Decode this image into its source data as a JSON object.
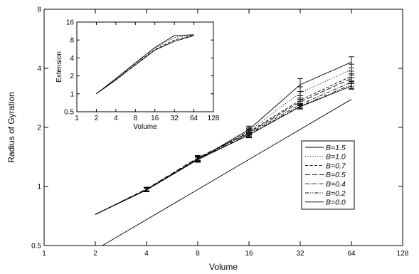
{
  "chart_data": [
    {
      "id": "main",
      "type": "line",
      "scale": "log-log",
      "xlabel": "Volume",
      "ylabel": "Radius of Gyration",
      "xlim": [
        1,
        128
      ],
      "ylim": [
        0.5,
        8
      ],
      "xticks": [
        1,
        2,
        4,
        8,
        16,
        32,
        64,
        128
      ],
      "xticklabels": [
        "1",
        "2",
        "4",
        "8",
        "16",
        "32",
        "64",
        "128"
      ],
      "yticks": [
        0.5,
        1,
        2,
        4,
        8
      ],
      "yticklabels": [
        "0.5",
        "1",
        "2",
        "4",
        "8"
      ],
      "legend": {
        "position": "lower-right",
        "box": true
      },
      "series": [
        {
          "name": "B=1.5",
          "dash": "solid",
          "x": [
            2,
            4,
            8,
            16,
            32,
            64
          ],
          "y": [
            0.72,
            0.96,
            1.37,
            1.95,
            3.3,
            4.3
          ],
          "err": [
            0,
            0.02,
            0.04,
            0.08,
            0.25,
            0.28
          ]
        },
        {
          "name": "B=1.0",
          "dash": "dotted",
          "x": [
            2,
            4,
            8,
            16,
            32,
            64
          ],
          "y": [
            0.72,
            0.96,
            1.37,
            1.92,
            3.0,
            3.95
          ],
          "err": [
            0,
            0.02,
            0.04,
            0.08,
            0.22,
            0.25
          ]
        },
        {
          "name": "B=0.7",
          "dash": "dashed",
          "x": [
            2,
            4,
            8,
            16,
            32,
            64
          ],
          "y": [
            0.72,
            0.965,
            1.38,
            1.9,
            2.75,
            3.65
          ],
          "err": [
            0,
            0.02,
            0.04,
            0.07,
            0.15,
            0.22
          ]
        },
        {
          "name": "B=0.5",
          "dash": "longdash",
          "x": [
            2,
            4,
            8,
            16,
            32,
            64
          ],
          "y": [
            0.72,
            0.97,
            1.4,
            1.88,
            2.7,
            3.55
          ],
          "err": [
            0,
            0.02,
            0.04,
            0.07,
            0.12,
            0.2
          ]
        },
        {
          "name": "B=0.4",
          "dash": "dashdot",
          "x": [
            2,
            4,
            8,
            16,
            32,
            64
          ],
          "y": [
            0.72,
            0.97,
            1.39,
            1.86,
            2.62,
            3.4
          ],
          "err": [
            0,
            0.02,
            0.04,
            0.07,
            0.1,
            0.18
          ]
        },
        {
          "name": "B=0.2",
          "dash": "dashdotdot",
          "x": [
            2,
            4,
            8,
            16,
            32,
            64
          ],
          "y": [
            0.72,
            0.96,
            1.38,
            1.84,
            2.57,
            3.3
          ],
          "err": [
            0,
            0.02,
            0.04,
            0.06,
            0.08,
            0.15
          ]
        },
        {
          "name": "B=0.0",
          "dash": "solid",
          "x": [
            2,
            4,
            8,
            16,
            32,
            64
          ],
          "y": [
            0.72,
            0.96,
            1.37,
            1.83,
            2.55,
            3.25
          ],
          "err": [
            0,
            0.02,
            0.04,
            0.06,
            0.07,
            0.12
          ]
        }
      ],
      "reference_line": {
        "x": [
          2.2,
          64
        ],
        "y": [
          0.48,
          2.78
        ]
      }
    },
    {
      "id": "inset",
      "type": "line",
      "scale": "log-log",
      "xlabel": "Volume",
      "ylabel": "Extension",
      "xlim": [
        1,
        128
      ],
      "ylim": [
        0.5,
        16
      ],
      "xticks": [
        1,
        2,
        4,
        8,
        16,
        32,
        64,
        128
      ],
      "xticklabels": [
        "1",
        "2",
        "4",
        "8",
        "16",
        "32",
        "64",
        "128"
      ],
      "yticks": [
        0.5,
        1,
        2,
        4,
        8,
        16
      ],
      "yticklabels": [
        "0.5",
        "1",
        "2",
        "4",
        "8",
        "16"
      ],
      "series": [
        {
          "dash": "solid",
          "x": [
            2,
            4,
            8,
            16,
            32,
            64
          ],
          "y": [
            1.0,
            1.8,
            3.3,
            6.0,
            9.5,
            9.8
          ]
        },
        {
          "dash": "dotted",
          "x": [
            2,
            4,
            8,
            16,
            32,
            64
          ],
          "y": [
            1.0,
            1.75,
            3.2,
            5.8,
            8.8,
            9.7
          ]
        },
        {
          "dash": "dashed",
          "x": [
            2,
            4,
            8,
            16,
            32,
            64
          ],
          "y": [
            1.0,
            1.7,
            3.1,
            5.5,
            8.0,
            9.6
          ]
        },
        {
          "dash": "solid",
          "x": [
            2,
            4,
            8,
            16,
            32,
            64
          ],
          "y": [
            1.0,
            1.72,
            3.05,
            5.4,
            7.6,
            9.5
          ]
        }
      ]
    }
  ]
}
